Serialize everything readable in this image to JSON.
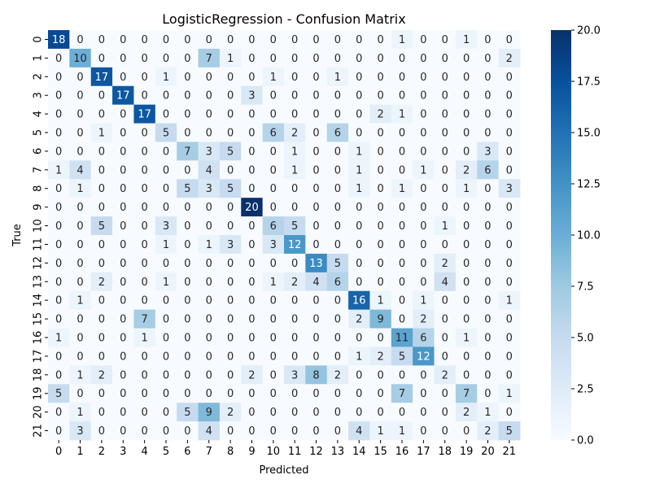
{
  "chart_data": {
    "type": "heatmap",
    "title": "LogisticRegression - Confusion Matrix",
    "xlabel": "Predicted",
    "ylabel": "True",
    "x_categories": [
      "0",
      "1",
      "2",
      "3",
      "4",
      "5",
      "6",
      "7",
      "8",
      "9",
      "10",
      "11",
      "12",
      "13",
      "14",
      "15",
      "16",
      "17",
      "18",
      "19",
      "20",
      "21"
    ],
    "y_categories": [
      "0",
      "1",
      "2",
      "3",
      "4",
      "5",
      "6",
      "7",
      "8",
      "9",
      "10",
      "11",
      "12",
      "13",
      "14",
      "15",
      "16",
      "17",
      "18",
      "19",
      "20",
      "21"
    ],
    "matrix": [
      [
        18,
        0,
        0,
        0,
        0,
        0,
        0,
        0,
        0,
        0,
        0,
        0,
        0,
        0,
        0,
        0,
        1,
        0,
        0,
        1,
        0,
        0
      ],
      [
        0,
        10,
        0,
        0,
        0,
        0,
        0,
        7,
        1,
        0,
        0,
        0,
        0,
        0,
        0,
        0,
        0,
        0,
        0,
        0,
        0,
        2
      ],
      [
        0,
        0,
        17,
        0,
        0,
        1,
        0,
        0,
        0,
        0,
        1,
        0,
        0,
        1,
        0,
        0,
        0,
        0,
        0,
        0,
        0,
        0
      ],
      [
        0,
        0,
        0,
        17,
        0,
        0,
        0,
        0,
        0,
        3,
        0,
        0,
        0,
        0,
        0,
        0,
        0,
        0,
        0,
        0,
        0,
        0
      ],
      [
        0,
        0,
        0,
        0,
        17,
        0,
        0,
        0,
        0,
        0,
        0,
        0,
        0,
        0,
        0,
        2,
        1,
        0,
        0,
        0,
        0,
        0
      ],
      [
        0,
        0,
        1,
        0,
        0,
        5,
        0,
        0,
        0,
        0,
        6,
        2,
        0,
        6,
        0,
        0,
        0,
        0,
        0,
        0,
        0,
        0
      ],
      [
        0,
        0,
        0,
        0,
        0,
        0,
        7,
        3,
        5,
        0,
        0,
        1,
        0,
        0,
        1,
        0,
        0,
        0,
        0,
        0,
        3,
        0
      ],
      [
        1,
        4,
        0,
        0,
        0,
        0,
        0,
        4,
        0,
        0,
        0,
        1,
        0,
        0,
        1,
        0,
        0,
        1,
        0,
        2,
        6,
        0
      ],
      [
        0,
        1,
        0,
        0,
        0,
        0,
        5,
        3,
        5,
        0,
        0,
        0,
        0,
        0,
        1,
        0,
        1,
        0,
        0,
        1,
        0,
        3
      ],
      [
        0,
        0,
        0,
        0,
        0,
        0,
        0,
        0,
        0,
        20,
        0,
        0,
        0,
        0,
        0,
        0,
        0,
        0,
        0,
        0,
        0,
        0
      ],
      [
        0,
        0,
        5,
        0,
        0,
        3,
        0,
        0,
        0,
        0,
        6,
        5,
        0,
        0,
        0,
        0,
        0,
        0,
        1,
        0,
        0,
        0
      ],
      [
        0,
        0,
        0,
        0,
        0,
        1,
        0,
        1,
        3,
        0,
        3,
        12,
        0,
        0,
        0,
        0,
        0,
        0,
        0,
        0,
        0,
        0
      ],
      [
        0,
        0,
        0,
        0,
        0,
        0,
        0,
        0,
        0,
        0,
        0,
        0,
        13,
        5,
        0,
        0,
        0,
        0,
        2,
        0,
        0,
        0
      ],
      [
        0,
        0,
        2,
        0,
        0,
        1,
        0,
        0,
        0,
        0,
        1,
        2,
        4,
        6,
        0,
        0,
        0,
        0,
        4,
        0,
        0,
        0
      ],
      [
        0,
        1,
        0,
        0,
        0,
        0,
        0,
        0,
        0,
        0,
        0,
        0,
        0,
        0,
        16,
        1,
        0,
        1,
        0,
        0,
        0,
        1
      ],
      [
        0,
        0,
        0,
        0,
        7,
        0,
        0,
        0,
        0,
        0,
        0,
        0,
        0,
        0,
        2,
        9,
        0,
        2,
        0,
        0,
        0,
        0
      ],
      [
        1,
        0,
        0,
        0,
        1,
        0,
        0,
        0,
        0,
        0,
        0,
        0,
        0,
        0,
        0,
        0,
        11,
        6,
        0,
        1,
        0,
        0
      ],
      [
        0,
        0,
        0,
        0,
        0,
        0,
        0,
        0,
        0,
        0,
        0,
        0,
        0,
        0,
        1,
        2,
        5,
        12,
        0,
        0,
        0,
        0
      ],
      [
        0,
        1,
        2,
        0,
        0,
        0,
        0,
        0,
        0,
        2,
        0,
        3,
        8,
        2,
        0,
        0,
        0,
        0,
        2,
        0,
        0,
        0
      ],
      [
        5,
        0,
        0,
        0,
        0,
        0,
        0,
        0,
        0,
        0,
        0,
        0,
        0,
        0,
        0,
        0,
        7,
        0,
        0,
        7,
        0,
        1
      ],
      [
        0,
        1,
        0,
        0,
        0,
        0,
        5,
        9,
        2,
        0,
        0,
        0,
        0,
        0,
        0,
        0,
        0,
        0,
        0,
        2,
        1,
        0
      ],
      [
        0,
        3,
        0,
        0,
        0,
        0,
        0,
        4,
        0,
        0,
        0,
        0,
        0,
        0,
        4,
        1,
        1,
        0,
        0,
        0,
        2,
        5
      ]
    ],
    "colorscale": "Blues",
    "vmin": 0,
    "vmax": 20,
    "colorbar_ticks": [
      "0.0",
      "2.5",
      "5.0",
      "7.5",
      "10.0",
      "12.5",
      "15.0",
      "17.5",
      "20.0"
    ],
    "colorbar_tick_values": [
      0,
      2.5,
      5,
      7.5,
      10,
      12.5,
      15,
      17.5,
      20
    ],
    "grid": false,
    "legend": "colorbar-right"
  }
}
